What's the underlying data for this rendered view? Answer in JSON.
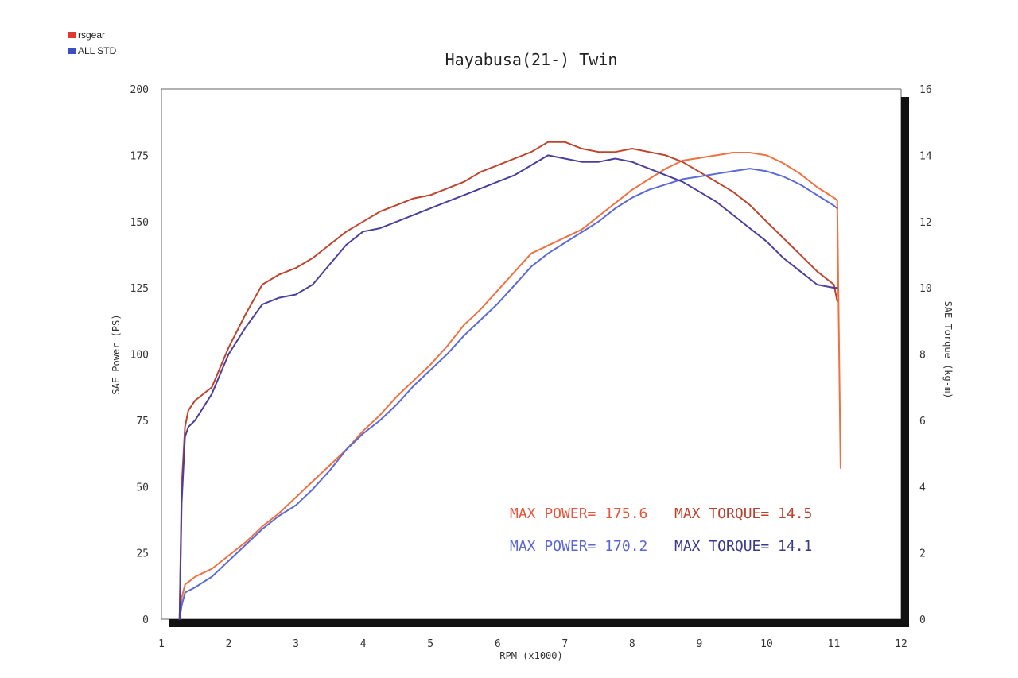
{
  "chart_data": {
    "type": "line",
    "title": "Hayabusa(21-) Twin",
    "xlabel": "RPM (x1000)",
    "ylabel": "SAE Power (PS)",
    "y2label": "SAE Torque (kg-m)",
    "xlim": [
      1,
      12
    ],
    "ylim": [
      0,
      200
    ],
    "y2lim": [
      0,
      16
    ],
    "xticks": [
      "1",
      "2",
      "3",
      "4",
      "5",
      "6",
      "7",
      "8",
      "9",
      "10",
      "11",
      "12"
    ],
    "yticks": [
      "0",
      "25",
      "50",
      "75",
      "100",
      "125",
      "150",
      "175",
      "200"
    ],
    "y2ticks": [
      "0",
      "2",
      "4",
      "6",
      "8",
      "10",
      "12",
      "14",
      "16"
    ],
    "grid": false,
    "legend_position": "top-left",
    "legend": [
      {
        "label": "rsgear",
        "color": "#e03a2e"
      },
      {
        "label": "ALL STD",
        "color": "#3a4fc4"
      }
    ],
    "series": [
      {
        "name": "rsgear",
        "measure": "power",
        "axis": "left",
        "color": "#f07040",
        "x": [
          1.27,
          1.3,
          1.35,
          1.5,
          1.75,
          2.0,
          2.25,
          2.5,
          2.75,
          3.0,
          3.25,
          3.5,
          3.75,
          4.0,
          4.25,
          4.5,
          4.75,
          5.0,
          5.25,
          5.5,
          5.75,
          6.0,
          6.25,
          6.5,
          6.75,
          7.0,
          7.25,
          7.5,
          7.75,
          8.0,
          8.25,
          8.5,
          8.75,
          9.0,
          9.25,
          9.5,
          9.75,
          10.0,
          10.25,
          10.5,
          10.75,
          11.0,
          11.05,
          11.1
        ],
        "y": [
          0,
          8,
          13,
          16,
          19,
          24,
          29,
          35,
          40,
          46,
          52,
          58,
          64,
          71,
          77,
          84,
          90,
          96,
          103,
          111,
          117,
          124,
          131,
          138,
          141,
          144,
          147,
          152,
          157,
          162,
          166,
          170,
          173,
          174,
          175,
          176,
          176,
          175,
          172,
          168,
          163,
          159,
          158,
          57
        ]
      },
      {
        "name": "rsgear",
        "measure": "torque",
        "axis": "right",
        "color": "#c0432c",
        "x": [
          1.27,
          1.3,
          1.35,
          1.4,
          1.5,
          1.75,
          2.0,
          2.25,
          2.5,
          2.75,
          3.0,
          3.25,
          3.5,
          3.75,
          4.0,
          4.25,
          4.5,
          4.75,
          5.0,
          5.25,
          5.5,
          5.75,
          6.0,
          6.25,
          6.5,
          6.75,
          7.0,
          7.25,
          7.5,
          7.75,
          8.0,
          8.25,
          8.5,
          8.75,
          9.0,
          9.25,
          9.5,
          9.75,
          10.0,
          10.25,
          10.5,
          10.75,
          11.0,
          11.05
        ],
        "y": [
          0,
          4.0,
          5.8,
          6.3,
          6.6,
          7.0,
          8.2,
          9.2,
          10.1,
          10.4,
          10.6,
          10.9,
          11.3,
          11.7,
          12.0,
          12.3,
          12.5,
          12.7,
          12.8,
          13.0,
          13.2,
          13.5,
          13.7,
          13.9,
          14.1,
          14.4,
          14.4,
          14.2,
          14.1,
          14.1,
          14.2,
          14.1,
          14.0,
          13.8,
          13.5,
          13.2,
          12.9,
          12.5,
          12.0,
          11.5,
          11.0,
          10.5,
          10.1,
          9.6
        ]
      },
      {
        "name": "ALL STD",
        "measure": "power",
        "axis": "left",
        "color": "#5b6ad6",
        "x": [
          1.27,
          1.3,
          1.35,
          1.5,
          1.75,
          2.0,
          2.25,
          2.5,
          2.75,
          3.0,
          3.25,
          3.5,
          3.75,
          4.0,
          4.25,
          4.5,
          4.75,
          5.0,
          5.25,
          5.5,
          5.75,
          6.0,
          6.25,
          6.5,
          6.75,
          7.0,
          7.25,
          7.5,
          7.75,
          8.0,
          8.25,
          8.5,
          8.75,
          9.0,
          9.25,
          9.5,
          9.75,
          10.0,
          10.25,
          10.5,
          10.75,
          11.0,
          11.05
        ],
        "y": [
          0,
          5,
          10,
          12,
          16,
          22,
          28,
          34,
          39,
          43,
          49,
          56,
          64,
          70,
          75,
          81,
          88,
          94,
          100,
          107,
          113,
          119,
          126,
          133,
          138,
          142,
          146,
          150,
          155,
          159,
          162,
          164,
          166,
          167,
          168,
          169,
          170,
          169,
          167,
          164,
          160,
          156,
          155
        ]
      },
      {
        "name": "ALL STD",
        "measure": "torque",
        "axis": "right",
        "color": "#4a3f9a",
        "x": [
          1.27,
          1.3,
          1.35,
          1.4,
          1.5,
          1.75,
          2.0,
          2.25,
          2.5,
          2.75,
          3.0,
          3.25,
          3.5,
          3.75,
          4.0,
          4.25,
          4.5,
          4.75,
          5.0,
          5.25,
          5.5,
          5.75,
          6.0,
          6.25,
          6.5,
          6.75,
          7.0,
          7.25,
          7.5,
          7.75,
          8.0,
          8.25,
          8.5,
          8.75,
          9.0,
          9.25,
          9.5,
          9.75,
          10.0,
          10.25,
          10.5,
          10.75,
          11.0,
          11.05
        ],
        "y": [
          0,
          3.5,
          5.5,
          5.8,
          6.0,
          6.8,
          8.0,
          8.8,
          9.5,
          9.7,
          9.8,
          10.1,
          10.7,
          11.3,
          11.7,
          11.8,
          12.0,
          12.2,
          12.4,
          12.6,
          12.8,
          13.0,
          13.2,
          13.4,
          13.7,
          14.0,
          13.9,
          13.8,
          13.8,
          13.9,
          13.8,
          13.6,
          13.4,
          13.2,
          12.9,
          12.6,
          12.2,
          11.8,
          11.4,
          10.9,
          10.5,
          10.1,
          10.0,
          10.0
        ]
      }
    ],
    "annotations": [
      {
        "text": "MAX POWER= 175.6",
        "color": "#e8553a"
      },
      {
        "text": "MAX TORQUE= 14.5",
        "color": "#b8412e"
      },
      {
        "text": "MAX POWER= 170.2",
        "color": "#5b66d6"
      },
      {
        "text": "MAX TORQUE= 14.1",
        "color": "#3a3a8a"
      }
    ]
  }
}
